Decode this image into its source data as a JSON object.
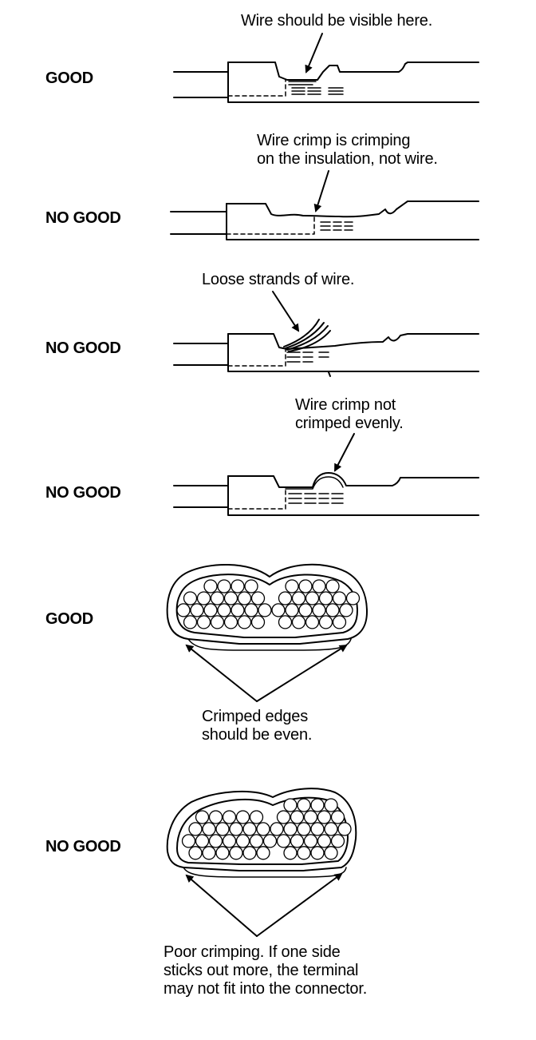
{
  "rows": [
    {
      "status": "GOOD",
      "callout": [
        "Wire should be visible here."
      ]
    },
    {
      "status": "NO GOOD",
      "callout": [
        "Wire crimp is crimping",
        "on the insulation, not wire."
      ]
    },
    {
      "status": "NO GOOD",
      "callout": [
        "Loose strands of wire."
      ]
    },
    {
      "status": "NO GOOD",
      "callout": [
        "Wire crimp not",
        "crimped evenly."
      ]
    },
    {
      "status": "GOOD",
      "callout": [
        "Crimped edges",
        "should be even."
      ]
    },
    {
      "status": "NO GOOD",
      "callout": [
        "Poor crimping. If one side",
        "sticks out more, the terminal",
        "may not fit into the connector."
      ]
    }
  ]
}
